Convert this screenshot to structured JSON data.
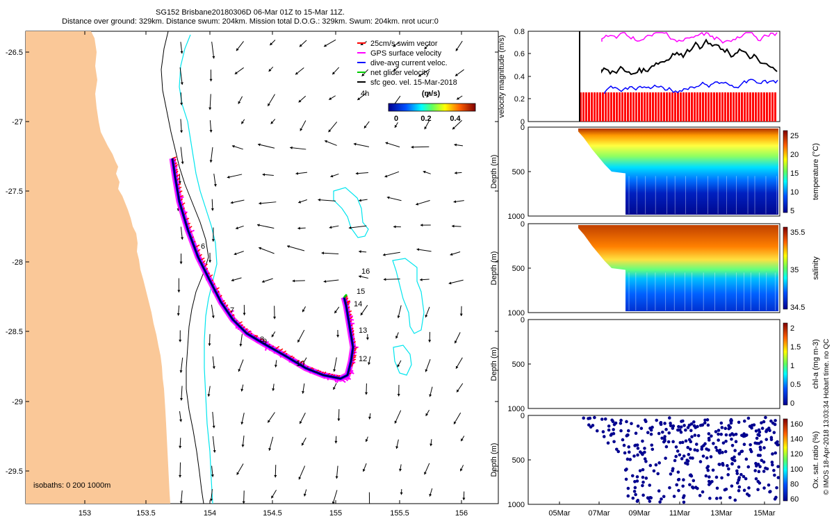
{
  "header": {
    "line1": "SG152 Brisbane20180306D 06-Mar 01Z to 15-Mar 11Z.",
    "line2": "Distance over ground: 329km. Distance swum: 204km. Mission total D.O.G.: 329km. Swum: 204km. nrot ucur:0"
  },
  "map": {
    "lon_ticks": [
      "153",
      "153.5",
      "154",
      "154.5",
      "155",
      "155.5",
      "156"
    ],
    "lat_ticks": [
      "-26.5",
      "-27",
      "-27.5",
      "-28",
      "-28.5",
      "-29",
      "-29.5"
    ],
    "isobaths_label": "isobaths: 0   200  1000m",
    "legend": {
      "items": [
        {
          "label": "25cm/s swim vector",
          "color": "#ff0000"
        },
        {
          "label": "GPS surface velocity",
          "color": "#ff00ff"
        },
        {
          "label": "dive-avg current veloc.",
          "color": "#0000ff"
        },
        {
          "label": "net glider velocity",
          "color": "#00cc00"
        },
        {
          "label": "sfc geo. vel. 15-Mar-2018",
          "color": "#000000"
        }
      ],
      "hour_label": "4h",
      "units": "(m/s)",
      "colorbar_ticks": [
        "0",
        "0.2",
        "0.4"
      ]
    },
    "day_labels": [
      {
        "text": "6"
      },
      {
        "text": "7"
      },
      {
        "text": "8"
      },
      {
        "text": "9"
      },
      {
        "text": "10"
      },
      {
        "text": "12"
      },
      {
        "text": "13"
      },
      {
        "text": "14"
      },
      {
        "text": "15"
      },
      {
        "text": "16"
      }
    ],
    "colors": {
      "land": "#fac898",
      "isobath_200": "#000000",
      "isobath_1000": "#00e5ee",
      "track": "#0000ff"
    }
  },
  "panels": {
    "velocity": {
      "ylabel": "velocity magnitude (m/s)",
      "yticks": [
        "0",
        "0.2",
        "0.4",
        "0.6",
        "0.8"
      ]
    },
    "temperature": {
      "ylabel": "Depth (m)",
      "cbar_label": "temperature (°C)",
      "cbar_ticks": [
        "5",
        "10",
        "15",
        "20",
        "25"
      ],
      "yticks": [
        "0",
        "500",
        "1000"
      ]
    },
    "salinity": {
      "ylabel": "Depth (m)",
      "cbar_label": "salinity",
      "cbar_ticks": [
        "34.5",
        "35",
        "35.5"
      ],
      "yticks": [
        "0",
        "500",
        "1000"
      ]
    },
    "chla": {
      "ylabel": "Depth (m)",
      "cbar_label": "chl-a (mg m-3)",
      "cbar_ticks": [
        "0",
        "0.5",
        "1",
        "1.5",
        "2"
      ],
      "yticks": [
        "0",
        "500",
        "1000"
      ]
    },
    "oxygen": {
      "ylabel": "Depth (m)",
      "cbar_label": "Ox. sat. ratio (%)",
      "cbar_ticks": [
        "60",
        "80",
        "100",
        "120",
        "140",
        "160"
      ],
      "yticks": [
        "0",
        "500",
        "1000"
      ]
    },
    "date_ticks": [
      "05Mar",
      "07Mar",
      "09Mar",
      "11Mar",
      "13Mar",
      "15Mar"
    ]
  },
  "credit": "© IMOS 18-Apr-2018 13:03:34 Hobart time. no QC"
}
